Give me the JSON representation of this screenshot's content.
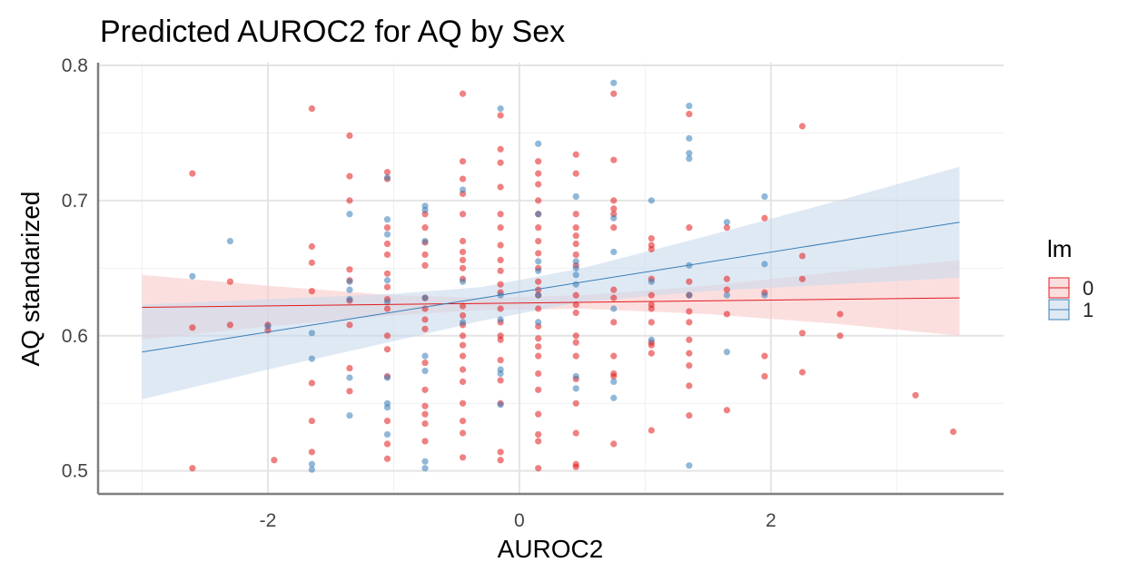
{
  "chart_data": {
    "type": "scatter",
    "title": "Predicted AUROC2 for AQ by Sex",
    "xlabel": "AUROC2",
    "ylabel": "AQ standarized",
    "xlim": [
      -3.35,
      3.85
    ],
    "ylim": [
      0.483,
      0.802
    ],
    "x_ticks": [
      "-2",
      "0",
      "2"
    ],
    "x_tick_values": [
      -2,
      0,
      2
    ],
    "y_ticks": [
      "0.5",
      "0.6",
      "0.7",
      "0.8"
    ],
    "y_tick_values": [
      0.5,
      0.6,
      0.7,
      0.8
    ],
    "grid": true,
    "legend": {
      "title": "lm",
      "position": "right",
      "entries": [
        "0",
        "1"
      ]
    },
    "series": [
      {
        "name": "0",
        "color": "#E41A1C",
        "fit": {
          "x": [
            -3.0,
            3.5
          ],
          "y": [
            0.621,
            0.628
          ]
        },
        "ci": {
          "x": [
            -3.0,
            -2.0,
            -1.0,
            -0.3,
            0.5,
            1.5,
            2.5,
            3.5
          ],
          "lower": [
            0.597,
            0.607,
            0.615,
            0.619,
            0.62,
            0.616,
            0.609,
            0.6
          ],
          "upper": [
            0.645,
            0.637,
            0.63,
            0.628,
            0.63,
            0.637,
            0.647,
            0.656
          ]
        },
        "points": [
          [
            -2.6,
            0.72
          ],
          [
            -2.6,
            0.606
          ],
          [
            -2.6,
            0.502
          ],
          [
            -2.3,
            0.64
          ],
          [
            -2.3,
            0.608
          ],
          [
            -2.0,
            0.608
          ],
          [
            -2.0,
            0.604
          ],
          [
            -1.95,
            0.508
          ],
          [
            -1.65,
            0.768
          ],
          [
            -1.65,
            0.666
          ],
          [
            -1.65,
            0.654
          ],
          [
            -1.65,
            0.633
          ],
          [
            -1.65,
            0.565
          ],
          [
            -1.65,
            0.537
          ],
          [
            -1.65,
            0.514
          ],
          [
            -1.35,
            0.748
          ],
          [
            -1.35,
            0.718
          ],
          [
            -1.35,
            0.7
          ],
          [
            -1.35,
            0.649
          ],
          [
            -1.35,
            0.641
          ],
          [
            -1.35,
            0.626
          ],
          [
            -1.35,
            0.608
          ],
          [
            -1.35,
            0.576
          ],
          [
            -1.35,
            0.559
          ],
          [
            -1.05,
            0.721
          ],
          [
            -1.05,
            0.716
          ],
          [
            -1.05,
            0.68
          ],
          [
            -1.05,
            0.668
          ],
          [
            -1.05,
            0.66
          ],
          [
            -1.05,
            0.646
          ],
          [
            -1.05,
            0.636
          ],
          [
            -1.05,
            0.627
          ],
          [
            -1.05,
            0.62
          ],
          [
            -1.05,
            0.6
          ],
          [
            -1.05,
            0.59
          ],
          [
            -1.05,
            0.57
          ],
          [
            -1.05,
            0.537
          ],
          [
            -1.05,
            0.52
          ],
          [
            -1.05,
            0.509
          ],
          [
            -0.75,
            0.69
          ],
          [
            -0.75,
            0.68
          ],
          [
            -0.75,
            0.669
          ],
          [
            -0.75,
            0.66
          ],
          [
            -0.75,
            0.652
          ],
          [
            -0.75,
            0.628
          ],
          [
            -0.75,
            0.62
          ],
          [
            -0.75,
            0.612
          ],
          [
            -0.75,
            0.605
          ],
          [
            -0.75,
            0.58
          ],
          [
            -0.75,
            0.56
          ],
          [
            -0.75,
            0.548
          ],
          [
            -0.75,
            0.542
          ],
          [
            -0.75,
            0.535
          ],
          [
            -0.75,
            0.522
          ],
          [
            -0.45,
            0.779
          ],
          [
            -0.45,
            0.729
          ],
          [
            -0.45,
            0.716
          ],
          [
            -0.45,
            0.705
          ],
          [
            -0.45,
            0.69
          ],
          [
            -0.45,
            0.67
          ],
          [
            -0.45,
            0.662
          ],
          [
            -0.45,
            0.656
          ],
          [
            -0.45,
            0.65
          ],
          [
            -0.45,
            0.642
          ],
          [
            -0.45,
            0.622
          ],
          [
            -0.45,
            0.615
          ],
          [
            -0.45,
            0.608
          ],
          [
            -0.45,
            0.6
          ],
          [
            -0.45,
            0.593
          ],
          [
            -0.45,
            0.585
          ],
          [
            -0.45,
            0.575
          ],
          [
            -0.45,
            0.566
          ],
          [
            -0.45,
            0.55
          ],
          [
            -0.45,
            0.537
          ],
          [
            -0.45,
            0.528
          ],
          [
            -0.45,
            0.51
          ],
          [
            -0.15,
            0.763
          ],
          [
            -0.15,
            0.738
          ],
          [
            -0.15,
            0.728
          ],
          [
            -0.15,
            0.71
          ],
          [
            -0.15,
            0.69
          ],
          [
            -0.15,
            0.68
          ],
          [
            -0.15,
            0.667
          ],
          [
            -0.15,
            0.656
          ],
          [
            -0.15,
            0.648
          ],
          [
            -0.15,
            0.638
          ],
          [
            -0.15,
            0.632
          ],
          [
            -0.15,
            0.62
          ],
          [
            -0.15,
            0.61
          ],
          [
            -0.15,
            0.6
          ],
          [
            -0.15,
            0.597
          ],
          [
            -0.15,
            0.582
          ],
          [
            -0.15,
            0.567
          ],
          [
            -0.15,
            0.55
          ],
          [
            -0.15,
            0.514
          ],
          [
            -0.15,
            0.508
          ],
          [
            0.15,
            0.729
          ],
          [
            0.15,
            0.72
          ],
          [
            0.15,
            0.712
          ],
          [
            0.15,
            0.7
          ],
          [
            0.15,
            0.69
          ],
          [
            0.15,
            0.68
          ],
          [
            0.15,
            0.67
          ],
          [
            0.15,
            0.661
          ],
          [
            0.15,
            0.65
          ],
          [
            0.15,
            0.64
          ],
          [
            0.15,
            0.634
          ],
          [
            0.15,
            0.63
          ],
          [
            0.15,
            0.62
          ],
          [
            0.15,
            0.607
          ],
          [
            0.15,
            0.598
          ],
          [
            0.15,
            0.592
          ],
          [
            0.15,
            0.585
          ],
          [
            0.15,
            0.572
          ],
          [
            0.15,
            0.56
          ],
          [
            0.15,
            0.542
          ],
          [
            0.15,
            0.527
          ],
          [
            0.15,
            0.522
          ],
          [
            0.15,
            0.502
          ],
          [
            0.45,
            0.734
          ],
          [
            0.45,
            0.72
          ],
          [
            0.45,
            0.69
          ],
          [
            0.45,
            0.68
          ],
          [
            0.45,
            0.674
          ],
          [
            0.45,
            0.668
          ],
          [
            0.45,
            0.66
          ],
          [
            0.45,
            0.652
          ],
          [
            0.45,
            0.63
          ],
          [
            0.45,
            0.623
          ],
          [
            0.45,
            0.617
          ],
          [
            0.45,
            0.6
          ],
          [
            0.45,
            0.595
          ],
          [
            0.45,
            0.585
          ],
          [
            0.45,
            0.568
          ],
          [
            0.45,
            0.55
          ],
          [
            0.45,
            0.528
          ],
          [
            0.45,
            0.505
          ],
          [
            0.45,
            0.503
          ],
          [
            0.75,
            0.779
          ],
          [
            0.75,
            0.73
          ],
          [
            0.75,
            0.7
          ],
          [
            0.75,
            0.694
          ],
          [
            0.75,
            0.69
          ],
          [
            0.75,
            0.68
          ],
          [
            0.75,
            0.634
          ],
          [
            0.75,
            0.628
          ],
          [
            0.75,
            0.61
          ],
          [
            0.75,
            0.585
          ],
          [
            0.75,
            0.572
          ],
          [
            0.75,
            0.57
          ],
          [
            0.75,
            0.52
          ],
          [
            1.05,
            0.672
          ],
          [
            1.05,
            0.667
          ],
          [
            1.05,
            0.664
          ],
          [
            1.05,
            0.642
          ],
          [
            1.05,
            0.63
          ],
          [
            1.05,
            0.623
          ],
          [
            1.05,
            0.62
          ],
          [
            1.05,
            0.61
          ],
          [
            1.05,
            0.595
          ],
          [
            1.05,
            0.593
          ],
          [
            1.05,
            0.587
          ],
          [
            1.05,
            0.53
          ],
          [
            1.35,
            0.764
          ],
          [
            1.35,
            0.68
          ],
          [
            1.35,
            0.64
          ],
          [
            1.35,
            0.63
          ],
          [
            1.35,
            0.618
          ],
          [
            1.35,
            0.61
          ],
          [
            1.35,
            0.597
          ],
          [
            1.35,
            0.587
          ],
          [
            1.35,
            0.578
          ],
          [
            1.35,
            0.563
          ],
          [
            1.35,
            0.541
          ],
          [
            1.65,
            0.68
          ],
          [
            1.65,
            0.642
          ],
          [
            1.65,
            0.634
          ],
          [
            1.65,
            0.616
          ],
          [
            1.65,
            0.545
          ],
          [
            1.95,
            0.687
          ],
          [
            1.95,
            0.585
          ],
          [
            1.95,
            0.57
          ],
          [
            1.95,
            0.632
          ],
          [
            2.25,
            0.755
          ],
          [
            2.25,
            0.659
          ],
          [
            2.25,
            0.642
          ],
          [
            2.25,
            0.602
          ],
          [
            2.25,
            0.573
          ],
          [
            2.55,
            0.616
          ],
          [
            2.55,
            0.6
          ],
          [
            3.15,
            0.556
          ],
          [
            3.45,
            0.529
          ]
        ]
      },
      {
        "name": "1",
        "color": "#377EB8",
        "fit": {
          "x": [
            -3.0,
            3.5
          ],
          "y": [
            0.588,
            0.684
          ]
        },
        "ci": {
          "x": [
            -3.0,
            -2.0,
            -1.0,
            -0.3,
            0.5,
            1.5,
            2.5,
            3.5
          ],
          "lower": [
            0.553,
            0.575,
            0.596,
            0.611,
            0.625,
            0.633,
            0.638,
            0.643
          ],
          "upper": [
            0.623,
            0.627,
            0.631,
            0.636,
            0.65,
            0.674,
            0.699,
            0.725
          ]
        },
        "points": [
          [
            -2.6,
            0.644
          ],
          [
            -2.3,
            0.67
          ],
          [
            -2.0,
            0.607
          ],
          [
            -1.65,
            0.602
          ],
          [
            -1.65,
            0.583
          ],
          [
            -1.65,
            0.505
          ],
          [
            -1.65,
            0.501
          ],
          [
            -1.35,
            0.69
          ],
          [
            -1.35,
            0.64
          ],
          [
            -1.35,
            0.634
          ],
          [
            -1.35,
            0.627
          ],
          [
            -1.35,
            0.569
          ],
          [
            -1.35,
            0.541
          ],
          [
            -1.05,
            0.717
          ],
          [
            -1.05,
            0.686
          ],
          [
            -1.05,
            0.675
          ],
          [
            -1.05,
            0.641
          ],
          [
            -1.05,
            0.625
          ],
          [
            -1.05,
            0.569
          ],
          [
            -1.05,
            0.55
          ],
          [
            -1.05,
            0.547
          ],
          [
            -1.05,
            0.527
          ],
          [
            -0.75,
            0.696
          ],
          [
            -0.75,
            0.693
          ],
          [
            -0.75,
            0.67
          ],
          [
            -0.75,
            0.628
          ],
          [
            -0.75,
            0.585
          ],
          [
            -0.75,
            0.574
          ],
          [
            -0.75,
            0.507
          ],
          [
            -0.75,
            0.502
          ],
          [
            -0.45,
            0.708
          ],
          [
            -0.45,
            0.64
          ],
          [
            -0.45,
            0.61
          ],
          [
            -0.15,
            0.768
          ],
          [
            -0.15,
            0.63
          ],
          [
            -0.15,
            0.612
          ],
          [
            -0.15,
            0.575
          ],
          [
            -0.15,
            0.572
          ],
          [
            -0.15,
            0.549
          ],
          [
            0.15,
            0.742
          ],
          [
            0.15,
            0.69
          ],
          [
            0.15,
            0.655
          ],
          [
            0.15,
            0.648
          ],
          [
            0.15,
            0.63
          ],
          [
            0.15,
            0.61
          ],
          [
            0.45,
            0.703
          ],
          [
            0.45,
            0.655
          ],
          [
            0.45,
            0.65
          ],
          [
            0.45,
            0.645
          ],
          [
            0.45,
            0.638
          ],
          [
            0.45,
            0.57
          ],
          [
            0.45,
            0.561
          ],
          [
            0.75,
            0.787
          ],
          [
            0.75,
            0.687
          ],
          [
            0.75,
            0.662
          ],
          [
            0.75,
            0.62
          ],
          [
            0.75,
            0.566
          ],
          [
            0.75,
            0.554
          ],
          [
            1.05,
            0.7
          ],
          [
            1.05,
            0.64
          ],
          [
            1.05,
            0.597
          ],
          [
            1.35,
            0.77
          ],
          [
            1.35,
            0.746
          ],
          [
            1.35,
            0.735
          ],
          [
            1.35,
            0.731
          ],
          [
            1.35,
            0.652
          ],
          [
            1.35,
            0.63
          ],
          [
            1.35,
            0.504
          ],
          [
            1.65,
            0.684
          ],
          [
            1.65,
            0.63
          ],
          [
            1.65,
            0.588
          ],
          [
            1.95,
            0.703
          ],
          [
            1.95,
            0.653
          ],
          [
            1.95,
            0.63
          ]
        ]
      }
    ]
  }
}
